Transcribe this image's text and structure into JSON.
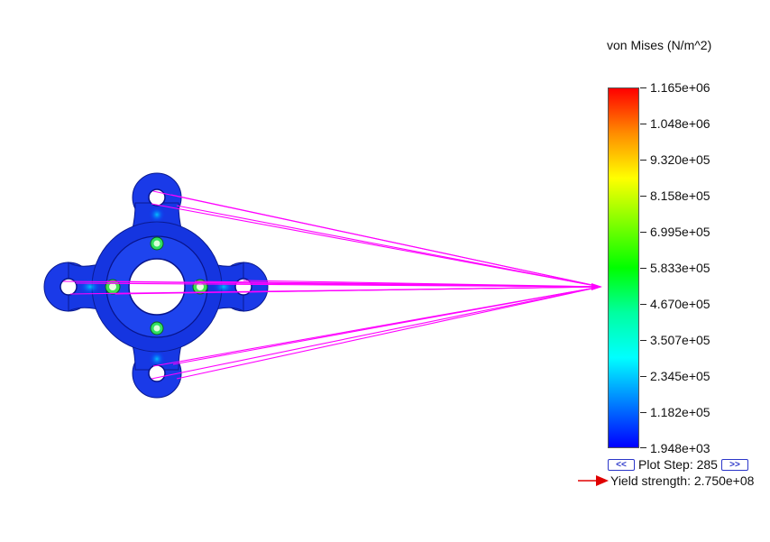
{
  "legend": {
    "title": "von Mises (N/m^2)",
    "ticks": [
      "1.165e+06",
      "1.048e+06",
      "9.320e+05",
      "8.158e+05",
      "6.995e+05",
      "5.833e+05",
      "4.670e+05",
      "3.507e+05",
      "2.345e+05",
      "1.182e+05",
      "1.948e+03"
    ],
    "gradient_colors": [
      "#ff0000",
      "#ff8c00",
      "#ffff00",
      "#80ff00",
      "#00ff00",
      "#00ffa0",
      "#00ffff",
      "#0080ff",
      "#0000ff"
    ]
  },
  "plot_step": {
    "prev_label": "<<",
    "text": "Plot Step: 285",
    "next_label": ">>"
  },
  "yield": {
    "text": "Yield strength: 2.750e+08",
    "arrow_color": "#e00000"
  },
  "model": {
    "base_color": "#1030e0",
    "load_line_color": "#ff00ff"
  }
}
